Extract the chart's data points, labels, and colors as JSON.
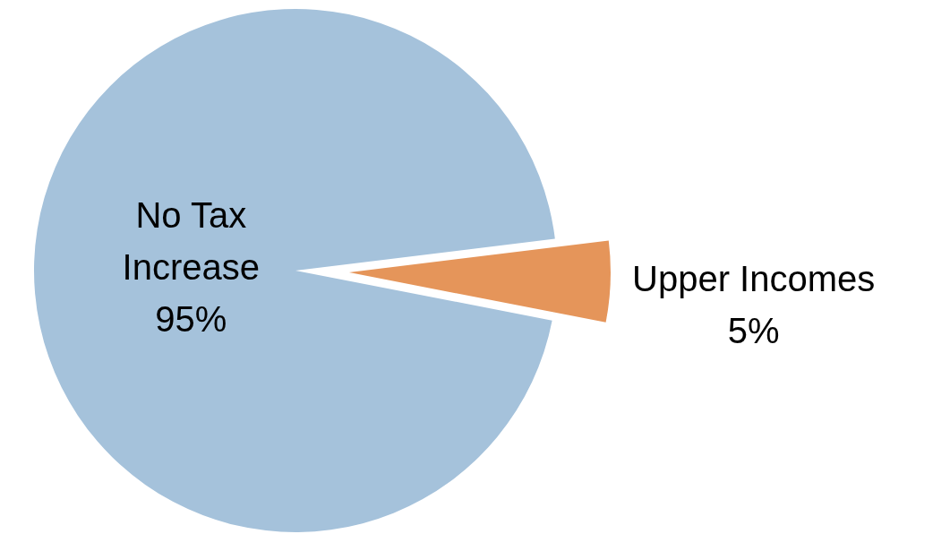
{
  "chart_data": {
    "type": "pie",
    "categories": [
      "No Tax Increase",
      "Upper Incomes"
    ],
    "values": [
      95,
      5
    ],
    "value_labels": [
      "95%",
      "5%"
    ],
    "colors": [
      "#a5c2db",
      "#e5955a"
    ],
    "legend": false
  }
}
